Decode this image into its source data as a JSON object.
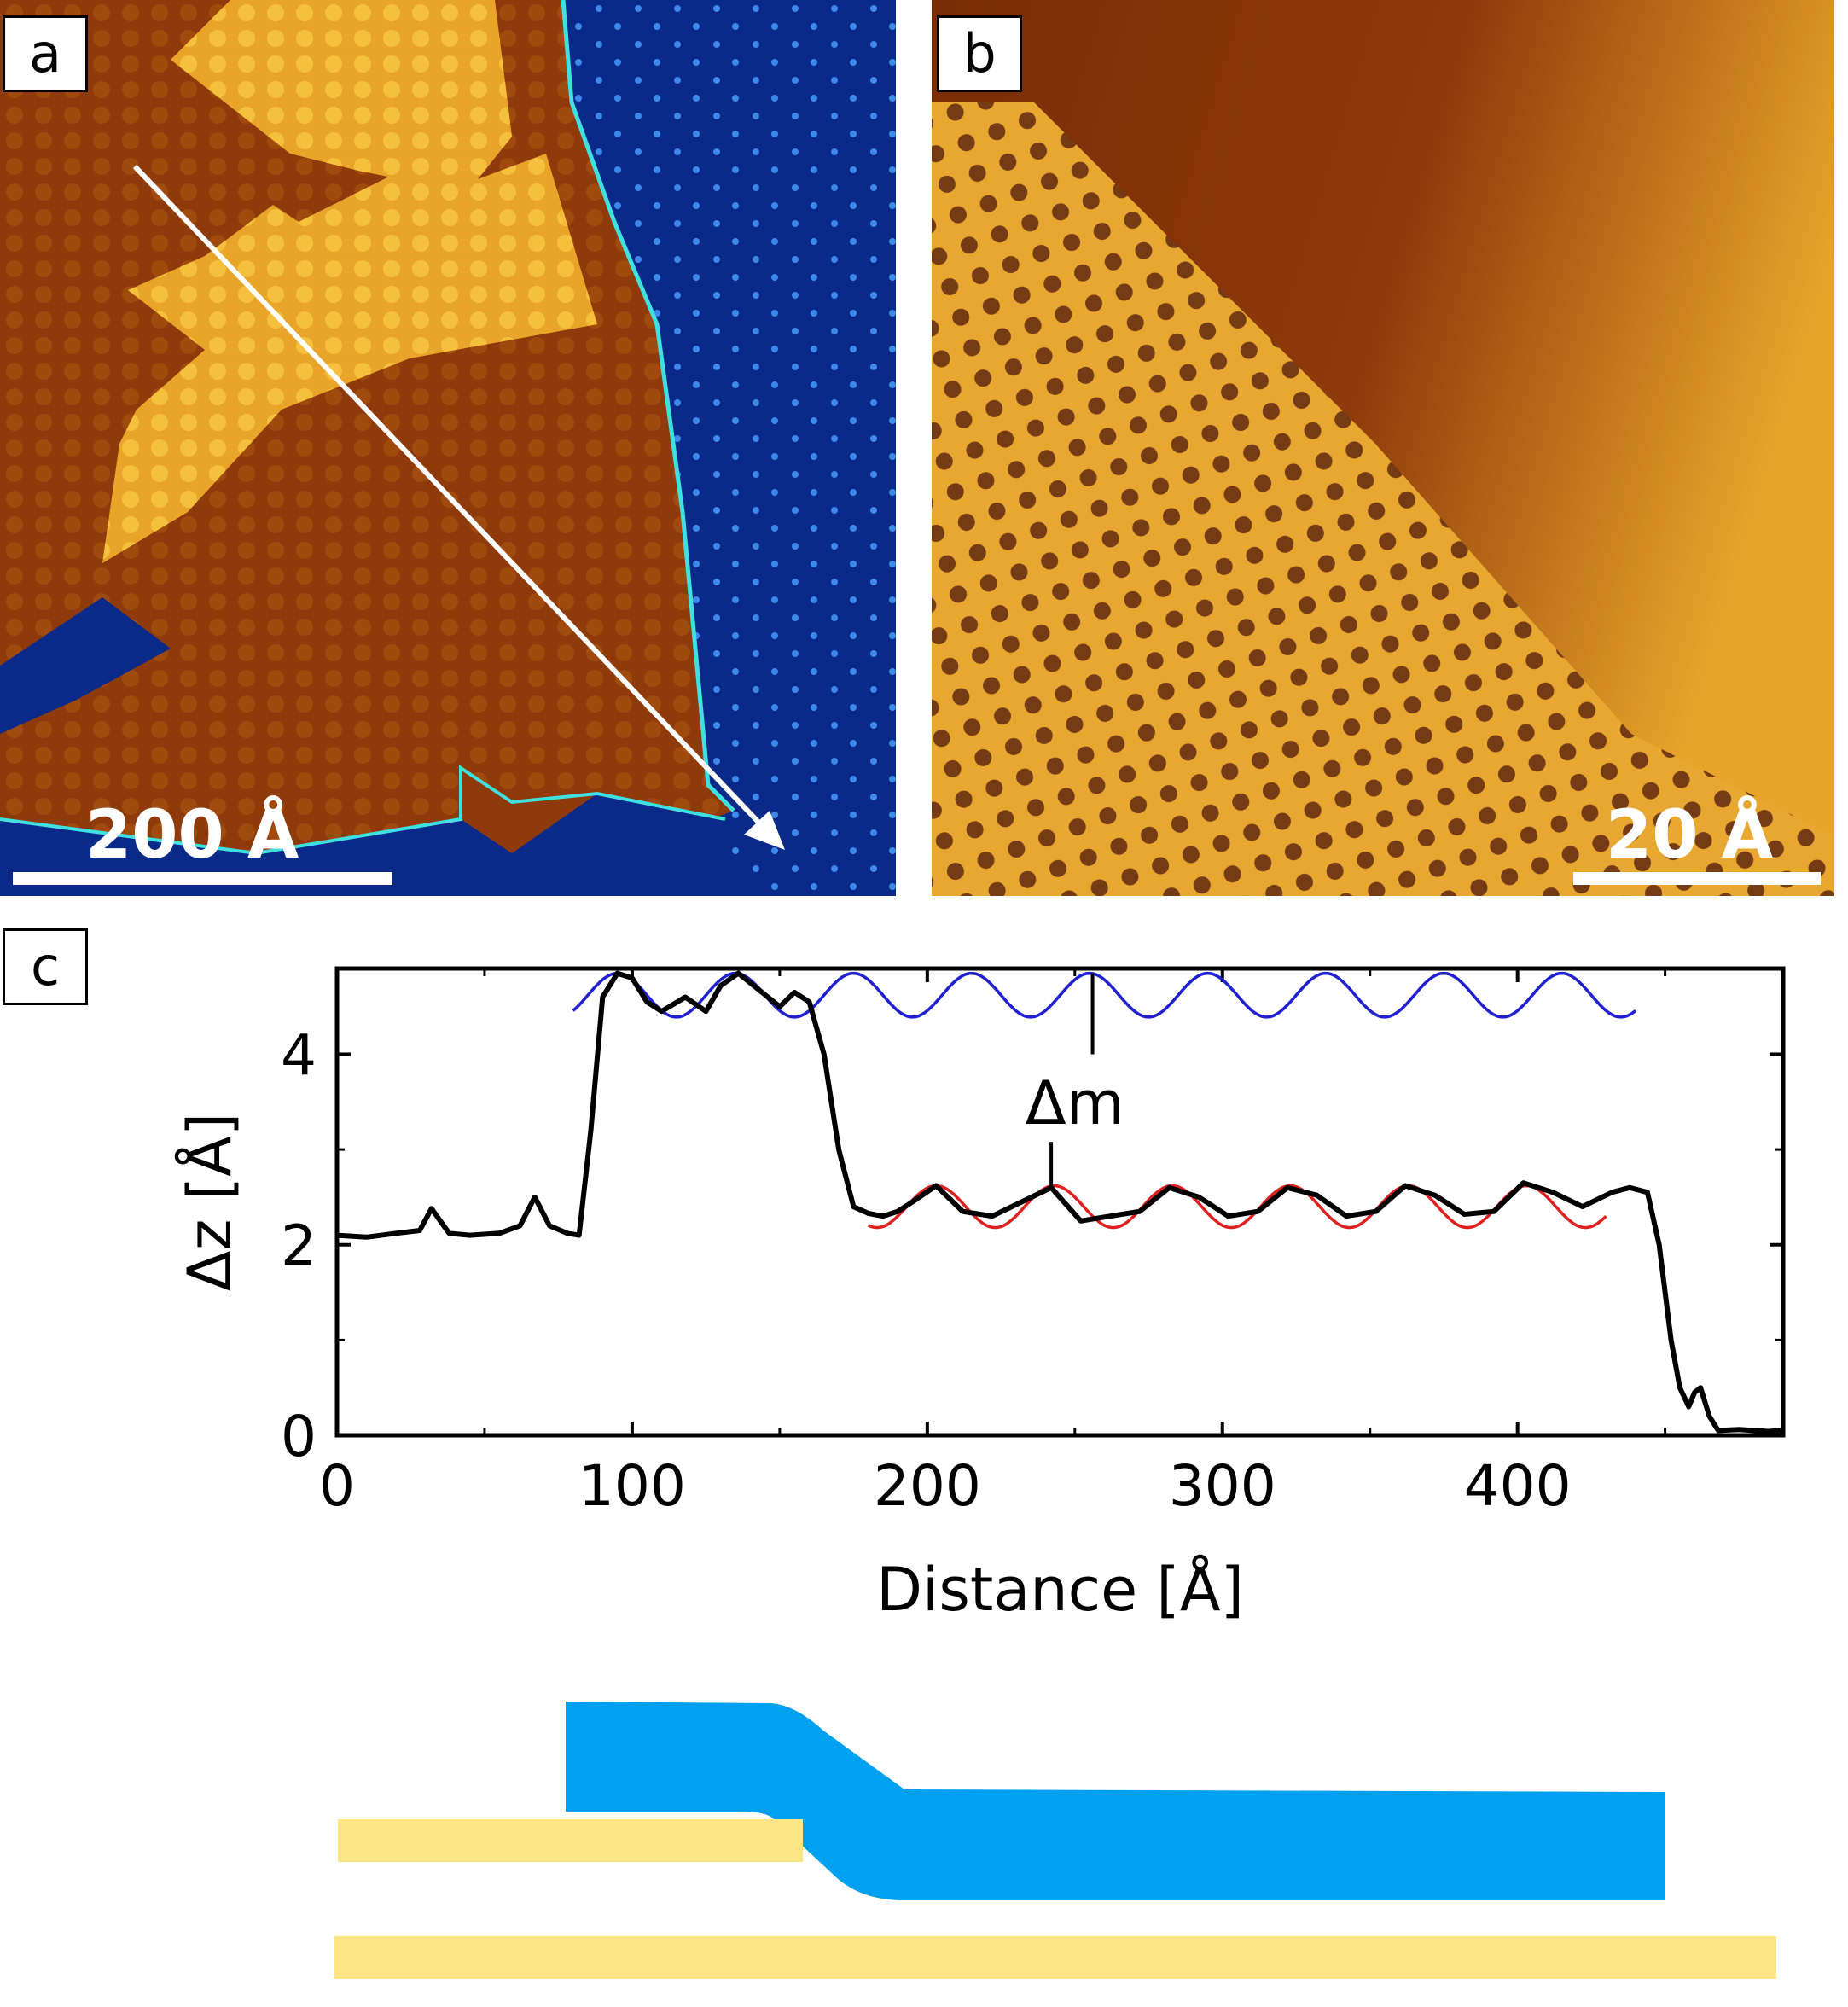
{
  "panels": {
    "a": {
      "label": "a",
      "scale_bar": "200 Å"
    },
    "b": {
      "label": "b",
      "scale_bar": "20 Å"
    },
    "c": {
      "label": "c"
    }
  },
  "chart_data": {
    "type": "line",
    "xlabel": "Distance [Å]",
    "ylabel": "Δz [Å]",
    "xlim": [
      0,
      490
    ],
    "ylim": [
      0,
      4.9
    ],
    "xticks": [
      0,
      100,
      200,
      300,
      400
    ],
    "yticks": [
      0,
      2,
      4
    ],
    "annotation": "Δm",
    "series": [
      {
        "name": "profile",
        "color": "#000000",
        "x": [
          0,
          10,
          20,
          28,
          32,
          38,
          45,
          55,
          62,
          67,
          72,
          78,
          82,
          86,
          90,
          95,
          100,
          105,
          110,
          118,
          125,
          130,
          136,
          142,
          150,
          155,
          160,
          165,
          170,
          175,
          180,
          185,
          190,
          195,
          203,
          212,
          222,
          232,
          242,
          252,
          262,
          272,
          282,
          292,
          302,
          312,
          322,
          332,
          342,
          352,
          362,
          372,
          382,
          392,
          402,
          412,
          422,
          432,
          438,
          444,
          448,
          452,
          455,
          458,
          460,
          462,
          465,
          468,
          475,
          485,
          490
        ],
        "y": [
          2.1,
          2.08,
          2.12,
          2.15,
          2.38,
          2.12,
          2.1,
          2.12,
          2.2,
          2.5,
          2.2,
          2.12,
          2.1,
          3.2,
          4.6,
          4.85,
          4.8,
          4.55,
          4.45,
          4.6,
          4.45,
          4.72,
          4.85,
          4.7,
          4.5,
          4.65,
          4.55,
          4.0,
          3.0,
          2.4,
          2.33,
          2.3,
          2.35,
          2.45,
          2.62,
          2.35,
          2.3,
          2.45,
          2.6,
          2.25,
          2.3,
          2.35,
          2.6,
          2.5,
          2.3,
          2.35,
          2.6,
          2.52,
          2.3,
          2.35,
          2.62,
          2.52,
          2.32,
          2.35,
          2.65,
          2.55,
          2.4,
          2.55,
          2.6,
          2.55,
          2.0,
          1.0,
          0.5,
          0.3,
          0.45,
          0.5,
          0.2,
          0.05,
          0.06,
          0.04,
          0.05
        ]
      },
      {
        "name": "fit-upper",
        "color": "#2020d0",
        "amplitude": 0.23,
        "offset": 4.62,
        "period": 40,
        "phase": 95,
        "x_range": [
          80,
          440
        ]
      },
      {
        "name": "fit-lower",
        "color": "#e02020",
        "amplitude": 0.22,
        "offset": 2.4,
        "period": 40,
        "phase": 203,
        "x_range": [
          180,
          430
        ]
      }
    ]
  },
  "schematic": {
    "colors": {
      "substrate": "#fce585",
      "layer": "#00a0f0"
    }
  }
}
